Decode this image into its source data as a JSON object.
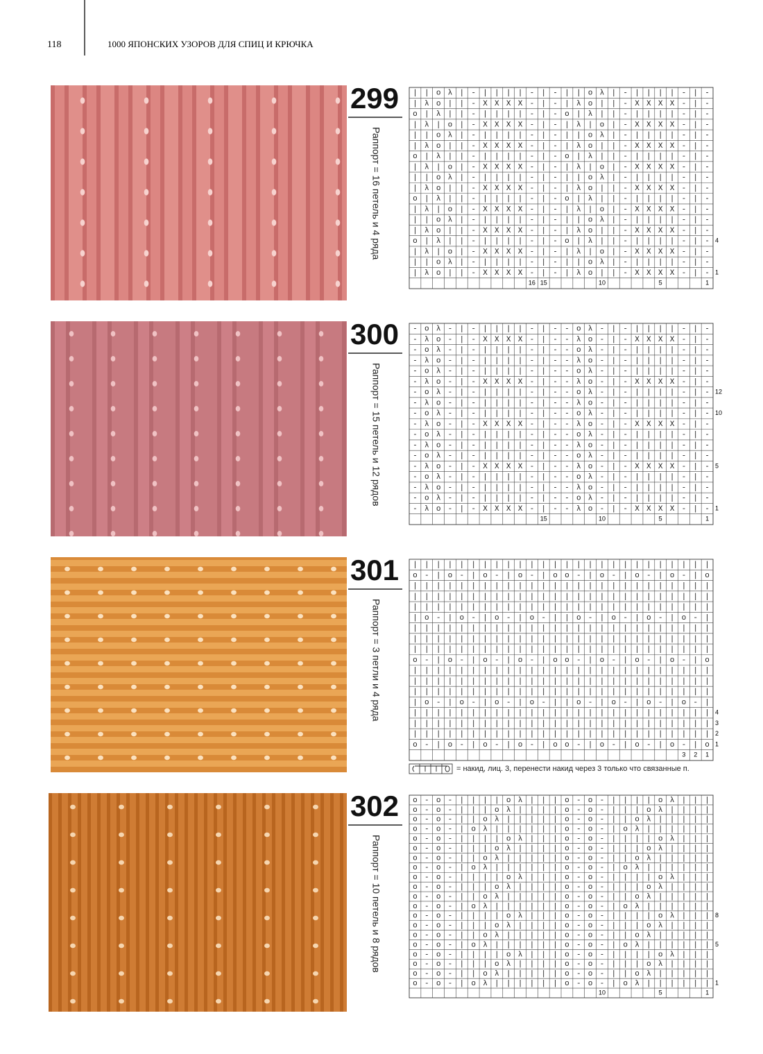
{
  "header": {
    "page_number": "118",
    "title": "1000 ЯПОНСКИХ УЗОРОВ ДЛЯ СПИЦ И КРЮЧКА"
  },
  "patterns": [
    {
      "number": "299",
      "repeat": "Раппорт = 16 петель и 4 ряда",
      "rows": [
        "||oλ|-||||-|-||oλ|-||||-|-",
        "|λo||-XXXX-|-|λo||-XXXX-|-",
        "o|λ||-||||-|-o|λ||-||||-|-",
        "|λ|o|-XXXX-|-|λ|o|-XXXX-|-",
        "||oλ|-||||-|-||oλ|-||||-|-",
        "|λo||-XXXX-|-|λo||-XXXX-|-",
        "o|λ||-||||-|-o|λ||-||||-|-",
        "|λ|o|-XXXX-|-|λ|o|-XXXX-|-",
        "||oλ|-||||-|-||oλ|-||||-|-",
        "|λo||-XXXX-|-|λo||-XXXX-|-",
        "o|λ||-||||-|-o|λ||-||||-|-",
        "|λ|o|-XXXX-|-|λ|o|-XXXX-|-",
        "||oλ|-||||-|-||oλ|-||||-|-",
        "|λo||-XXXX-|-|λo||-XXXX-|-",
        "o|λ||-||||-|-o|λ||-||||-|-",
        "|λ|o|-XXXX-|-|λ|o|-XXXX-|-",
        "||oλ|-||||-|-||oλ|-||||-|-",
        "|λo||-XXXX-|-|λo||-XXXX-|-"
      ],
      "column_numbers": [
        16,
        15,
        10,
        5,
        1
      ],
      "row_numbers": [
        4,
        1
      ]
    },
    {
      "number": "300",
      "repeat": "Раппорт = 15 петель и 12 рядов",
      "rows": [
        "-oλ-|-||||-|--oλ-|-||||-|-",
        "-λo-|-XXXX-|--λo-|-XXXX-|-",
        "-oλ-|-||||-|--oλ-|-||||-|-",
        "-λo-|-||||-|--λo-|-||||-|-",
        "-oλ-|-||||-|--oλ-|-||||-|-",
        "-λo-|-XXXX-|--λo-|-XXXX-|-",
        "-oλ-|-||||-|--oλ-|-||||-|-",
        "-λo-|-||||-|--λo-|-||||-|-",
        "-oλ-|-||||-|--oλ-|-||||-|-",
        "-λo-|-XXXX-|--λo-|-XXXX-|-",
        "-oλ-|-||||-|--oλ-|-||||-|-",
        "-λo-|-||||-|--λo-|-||||-|-",
        "-oλ-|-||||-|--oλ-|-||||-|-",
        "-λo-|-XXXX-|--λo-|-XXXX-|-",
        "-oλ-|-||||-|--oλ-|-||||-|-",
        "-λo-|-||||-|--λo-|-||||-|-",
        "-oλ-|-||||-|--oλ-|-||||-|-",
        "-λo-|-XXXX-|--λo-|-XXXX-|-"
      ],
      "column_numbers": [
        15,
        10,
        5,
        1
      ],
      "row_numbers": [
        12,
        10,
        5,
        1
      ]
    },
    {
      "number": "301",
      "repeat": "Раппорт = 3 петли и 4 ряда",
      "rows": [
        "||||||||||||||||||||||||||",
        "o-|o-|o-|o-|oo-|o-|o-|o-|o",
        "||||||||||||||||||||||||||",
        "||||||||||||||||||||||||||",
        "||||||||||||||||||||||||||",
        "|o-|o-|o-|o-||o-|o-|o-|o-|",
        "||||||||||||||||||||||||||",
        "||||||||||||||||||||||||||",
        "||||||||||||||||||||||||||",
        "o-|o-|o-|o-|oo-|o-|o-|o-|o",
        "||||||||||||||||||||||||||",
        "||||||||||||||||||||||||||",
        "||||||||||||||||||||||||||",
        "|o-|o-|o-|o-||o-|o-|o-|o-|",
        "||||||||||||||||||||||||||",
        "||||||||||||||||||||||||||",
        "||||||||||||||||||||||||||",
        "o-|o-|o-|o-|oo-|o-|o-|o-|o"
      ],
      "column_numbers": [
        3,
        2,
        1
      ],
      "row_numbers": [
        4,
        3,
        2,
        1
      ],
      "legend": "= накид, лиц. 3, перенести накид через 3 только что связанные п."
    },
    {
      "number": "302",
      "repeat": "Раппорт = 10 петель и 8 рядов",
      "rows": [
        "o-o-||||oλ|||o-o-||||oλ|||",
        "o-o-|||oλ||||o-o-|||oλ||||",
        "o-o-||oλ|||||o-o-||oλ|||||",
        "o-o-|oλ||||||o-o-|oλ||||||",
        "o-o-||||oλ|||o-o-||||oλ|||",
        "o-o-|||oλ||||o-o-|||oλ||||",
        "o-o-||oλ|||||o-o-||oλ|||||",
        "o-o-|oλ||||||o-o-|oλ||||||",
        "o-o-||||oλ|||o-o-||||oλ|||",
        "o-o-|||oλ||||o-o-|||oλ||||",
        "o-o-||oλ|||||o-o-||oλ|||||",
        "o-o-|oλ||||||o-o-|oλ||||||",
        "o-o-||||oλ|||o-o-||||oλ|||",
        "o-o-|||oλ||||o-o-|||oλ||||",
        "o-o-||oλ|||||o-o-||oλ|||||",
        "o-o-|oλ||||||o-o-|oλ||||||",
        "o-o-||||oλ|||o-o-||||oλ|||",
        "o-o-|||oλ||||o-o-|||oλ||||",
        "o-o-||oλ|||||o-o-||oλ|||||",
        "o-o-|oλ||||||o-o-|oλ||||||"
      ],
      "column_numbers": [
        10,
        5,
        1
      ],
      "row_numbers": [
        8,
        5,
        1
      ]
    }
  ]
}
